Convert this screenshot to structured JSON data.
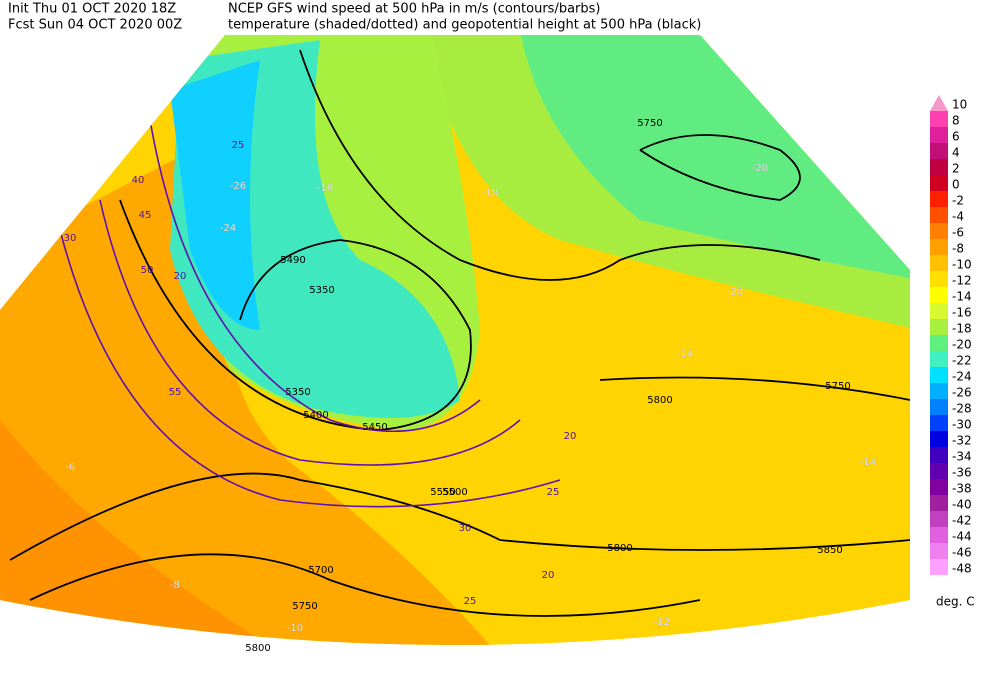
{
  "header": {
    "init": "Init  Thu 01 OCT 2020 18Z",
    "fcst": "Fcst Sun 04 OCT 2020 00Z",
    "line1": "NCEP GFS wind speed at 500 hPa in m/s (contours/barbs)",
    "line2": "temperature (shaded/dotted) and geopotential height at 500 hPa (black)"
  },
  "colorbar": {
    "unit": "deg. C",
    "levels": [
      10,
      8,
      6,
      4,
      2,
      0,
      -2,
      -4,
      -6,
      -8,
      -10,
      -12,
      -14,
      -16,
      -18,
      -20,
      -22,
      -24,
      -26,
      -28,
      -30,
      -32,
      -34,
      -36,
      -38,
      -40,
      -42,
      -44,
      -46,
      -48
    ],
    "colors": [
      "#f898c8",
      "#ff40b0",
      "#e0209a",
      "#c01078",
      "#c00040",
      "#d00020",
      "#ff2000",
      "#ff5000",
      "#ff8000",
      "#ffa000",
      "#ffc000",
      "#ffe000",
      "#ffff00",
      "#d8f830",
      "#a8f040",
      "#60f080",
      "#40f0c0",
      "#00e0ff",
      "#00b0ff",
      "#0080ff",
      "#0040ff",
      "#0000e0",
      "#4000c0",
      "#6000b0",
      "#8000a0",
      "#a020a0",
      "#c040c0",
      "#e060e0",
      "#f080f0",
      "#ffa0ff"
    ]
  },
  "map": {
    "labels": [
      "5750",
      "5750",
      "5800",
      "5350",
      "5400",
      "5450",
      "5500",
      "5490",
      "5700",
      "5750",
      "5800",
      "5850",
      "5800",
      "5550",
      "5350",
      "-20",
      "-20",
      "-18",
      "-16",
      "-26",
      "-24",
      "-14",
      "-14",
      "-12",
      "-10",
      "-8",
      "-6",
      "20",
      "25",
      "30",
      "40",
      "45",
      "50",
      "55",
      "20",
      "25",
      "30",
      "20",
      "25"
    ]
  }
}
